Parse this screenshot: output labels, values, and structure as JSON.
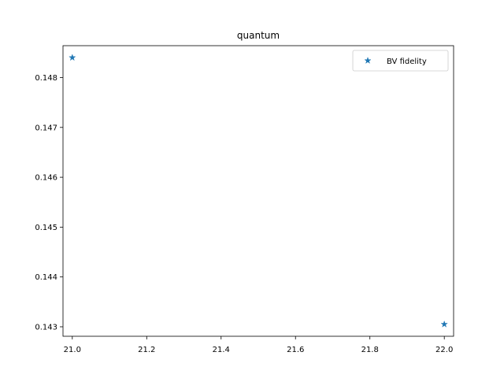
{
  "chart_data": {
    "type": "scatter",
    "title": "quantum",
    "xlabel": "",
    "ylabel": "",
    "xlim": [
      20.975,
      22.025
    ],
    "ylim": [
      0.14281,
      0.14864
    ],
    "x_ticks": [
      21.0,
      21.2,
      21.4,
      21.6,
      21.8,
      22.0
    ],
    "x_tick_labels": [
      "21.0",
      "21.2",
      "21.4",
      "21.6",
      "21.8",
      "22.0"
    ],
    "y_ticks": [
      0.143,
      0.144,
      0.145,
      0.146,
      0.147,
      0.148
    ],
    "y_tick_labels": [
      "0.143",
      "0.144",
      "0.145",
      "0.146",
      "0.147",
      "0.148"
    ],
    "grid": false,
    "legend_position": "top-right",
    "series": [
      {
        "name": "BV fidelity",
        "marker": "star",
        "color": "#1f77b4",
        "x": [
          21.0,
          22.0
        ],
        "y": [
          0.1484,
          0.14305
        ]
      }
    ]
  }
}
